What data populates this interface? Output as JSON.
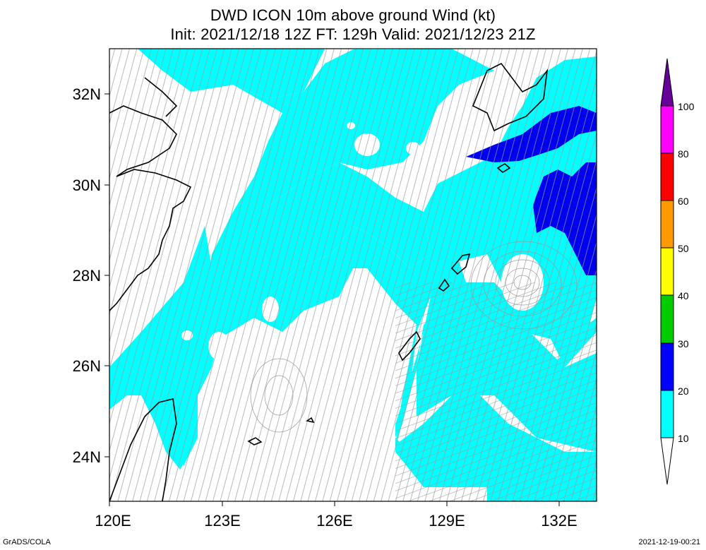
{
  "title_line1": "DWD ICON 10m above ground Wind (kt)",
  "title_line2": "Init: 2021/12/18 12Z  FT: 129h  Valid: 2021/12/23 21Z",
  "lat_labels": [
    "24N",
    "26N",
    "28N",
    "30N",
    "32N"
  ],
  "lon_labels": [
    "120E",
    "123E",
    "126E",
    "129E",
    "132E"
  ],
  "colorbar": {
    "levels": [
      "10",
      "20",
      "30",
      "40",
      "50",
      "60",
      "80",
      "100"
    ],
    "colors": [
      "#ffffff",
      "#00ffff",
      "#0000ff",
      "#00cc00",
      "#ffff00",
      "#ff9900",
      "#ff0000",
      "#ff00ff",
      "#660099"
    ]
  },
  "footer_left": "GrADS/COLA",
  "footer_right": "2021-12-19-00:21"
}
